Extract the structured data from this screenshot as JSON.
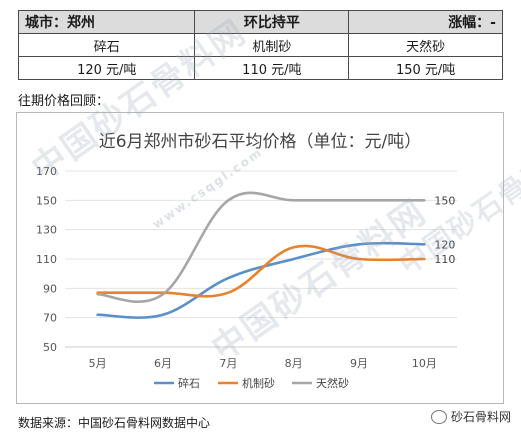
{
  "table": {
    "city_label": "城市：郑州",
    "trend_label": "环比持平",
    "change_label": "涨幅：-",
    "products": [
      {
        "name": "碎石",
        "price": "120 元/吨"
      },
      {
        "name": "机制砂",
        "price": "110 元/吨"
      },
      {
        "name": "天然砂",
        "price": "150 元/吨"
      }
    ]
  },
  "review_label": "往期价格回顾：",
  "source_label": "数据来源：中国砂石骨料网数据中心",
  "badge_label": "砂石骨料网",
  "watermark": {
    "text": "中国砂石骨料网",
    "url": "www.csqgl.com"
  },
  "chart_data": {
    "type": "line",
    "title": "近6月郑州市砂石平均价格（单位：元/吨）",
    "categories": [
      "5月",
      "6月",
      "7月",
      "8月",
      "9月",
      "10月"
    ],
    "ylim": [
      50,
      170
    ],
    "yticks": [
      50,
      70,
      90,
      110,
      130,
      150,
      170
    ],
    "grid": true,
    "legend_position": "bottom",
    "series": [
      {
        "name": "碎石",
        "color": "#5b8fc9",
        "values": [
          72,
          72,
          97,
          110,
          120,
          120
        ],
        "end_label": "120"
      },
      {
        "name": "机制砂",
        "color": "#e8822e",
        "values": [
          87,
          87,
          87,
          118,
          110,
          110
        ],
        "end_label": "110"
      },
      {
        "name": "天然砂",
        "color": "#a6a6a6",
        "values": [
          86,
          86,
          150,
          150,
          150,
          150
        ],
        "end_label": "150"
      }
    ]
  }
}
